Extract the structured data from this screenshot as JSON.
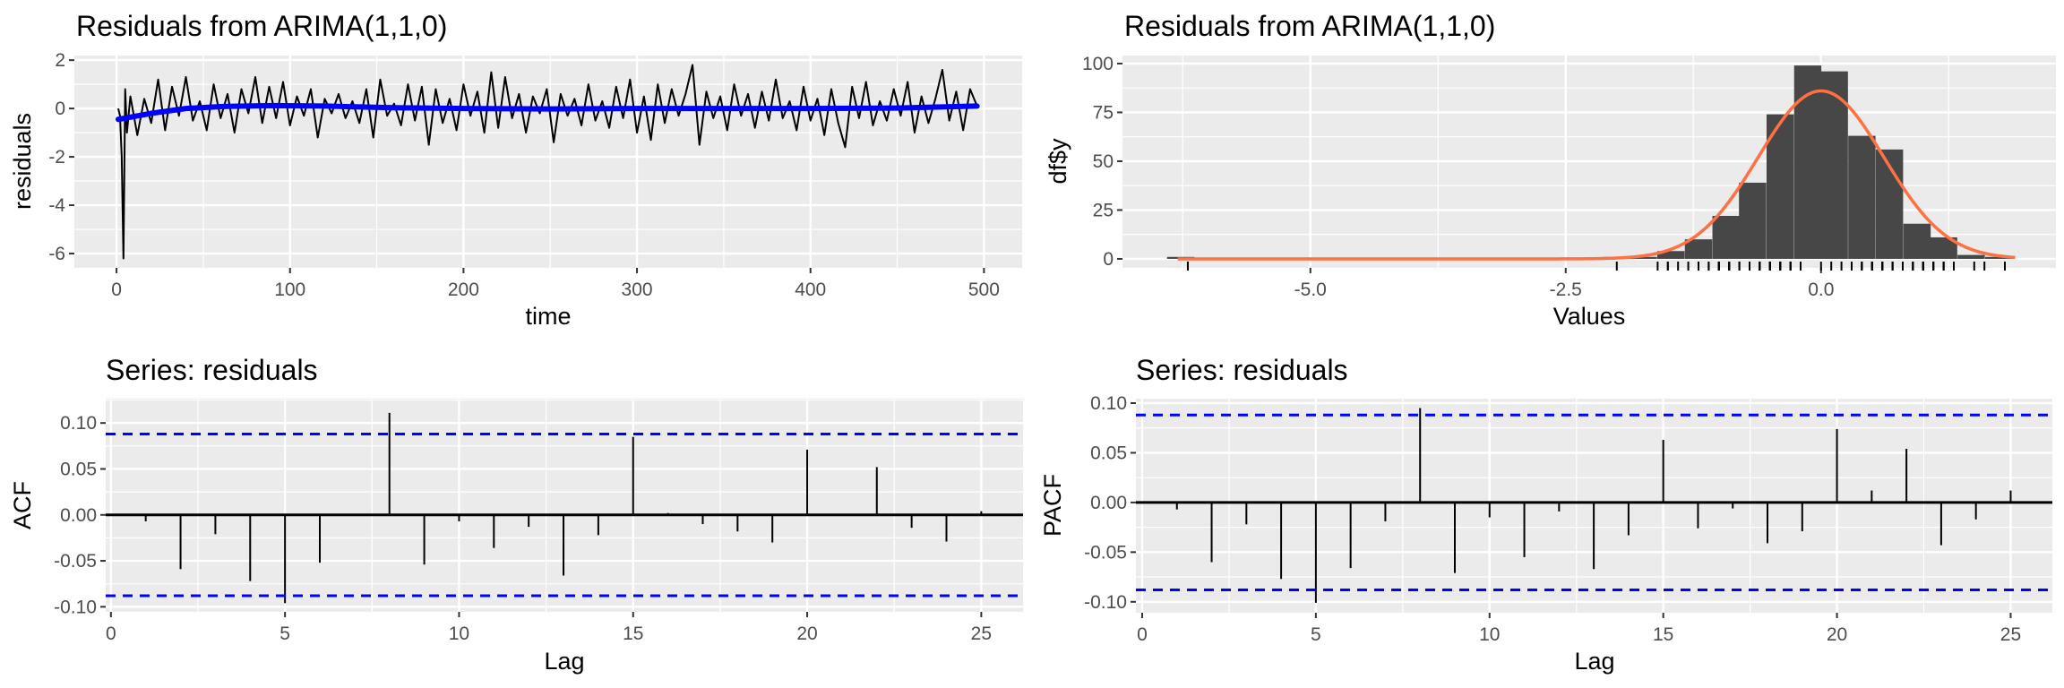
{
  "chart_data": [
    {
      "type": "line",
      "title": "Residuals from ARIMA(1,1,0)",
      "xlabel": "time",
      "ylabel": "residuals",
      "xlim": [
        -24.3,
        522
      ],
      "ylim": [
        -6.59,
        2.19
      ],
      "xticks": [
        0,
        100,
        200,
        300,
        400,
        500
      ],
      "xtick_labels": [
        "0",
        "100",
        "200",
        "300",
        "400",
        "500"
      ],
      "yticks": [
        -6,
        -4,
        -2,
        0,
        2
      ],
      "ytick_labels": [
        "-6",
        "-4",
        "-2",
        "0",
        "2"
      ],
      "grid": true,
      "series_color": "#000000",
      "trend_color": "#0000FF",
      "head_points": [
        [
          1,
          0.0
        ],
        [
          2,
          -0.3
        ],
        [
          3,
          -2.0
        ],
        [
          4,
          -6.2
        ],
        [
          5,
          0.8
        ],
        [
          6,
          -1.0
        ]
      ],
      "t_start": 8,
      "t_step": 4,
      "values": [
        0.5,
        -1.1,
        0.4,
        -0.6,
        1.2,
        -0.9,
        0.9,
        -0.3,
        1.3,
        -0.5,
        0.3,
        -0.9,
        1.0,
        -0.4,
        0.6,
        -1.0,
        0.8,
        -0.2,
        1.3,
        -0.6,
        0.9,
        -0.4,
        1.1,
        -0.7,
        0.5,
        -0.3,
        0.8,
        -1.2,
        0.4,
        -0.2,
        0.6,
        -0.4,
        0.3,
        -0.6,
        0.8,
        -1.2,
        1.2,
        -0.3,
        0.2,
        -0.7,
        1.0,
        -0.5,
        0.9,
        -1.5,
        0.8,
        -0.6,
        0.4,
        -0.9,
        1.0,
        -0.3,
        0.7,
        -1.0,
        1.5,
        -0.8,
        1.3,
        -0.4,
        0.6,
        -1.0,
        0.5,
        -0.2,
        0.8,
        -1.4,
        0.6,
        -0.3,
        0.4,
        -0.7,
        1.0,
        -0.5,
        0.3,
        -0.8,
        0.9,
        -0.4,
        1.2,
        -1.0,
        0.5,
        -1.3,
        1.0,
        -0.6,
        0.8,
        -0.3,
        0.6,
        1.8,
        -1.5,
        0.7,
        -0.4,
        0.5,
        -0.9,
        1.0,
        -0.3,
        0.6,
        -0.8,
        0.7,
        -0.5,
        1.2,
        -0.4,
        0.3,
        -0.9,
        0.9,
        -0.5,
        0.4,
        -1.1,
        0.8,
        -0.6,
        -1.6,
        0.9,
        -0.4,
        1.1,
        -0.7,
        0.3,
        -0.5,
        0.8,
        -0.3,
        1.1,
        -1.0,
        0.5,
        -0.6,
        0.4,
        1.6,
        -0.5,
        0.7,
        -0.9,
        0.8,
        0.1
      ],
      "trend": [
        [
          1,
          -0.45
        ],
        [
          20,
          -0.2
        ],
        [
          40,
          0.0
        ],
        [
          60,
          0.08
        ],
        [
          90,
          0.12
        ],
        [
          120,
          0.1
        ],
        [
          160,
          0.03
        ],
        [
          200,
          0.0
        ],
        [
          250,
          -0.02
        ],
        [
          300,
          0.0
        ],
        [
          350,
          0.0
        ],
        [
          400,
          0.0
        ],
        [
          450,
          0.02
        ],
        [
          496,
          0.1
        ]
      ]
    },
    {
      "type": "bar",
      "title": "Residuals from ARIMA(1,1,0)",
      "xlabel": "Values",
      "ylabel": "df$y",
      "xlim": [
        -6.84,
        2.3
      ],
      "ylim": [
        -4.6,
        104.1
      ],
      "xticks": [
        -5.0,
        -2.5,
        0.0
      ],
      "xtick_labels": [
        "-5.0",
        "-2.5",
        "0.0"
      ],
      "yticks": [
        0,
        25,
        50,
        75,
        100
      ],
      "ytick_labels": [
        "0",
        "25",
        "50",
        "75",
        "100"
      ],
      "grid": true,
      "bar_color": "#474747",
      "curve_color": "#FF7043",
      "bin_width": 0.267,
      "bin_centers": [
        -6.27,
        -2.0,
        -1.74,
        -1.47,
        -1.2,
        -0.93,
        -0.67,
        -0.4,
        -0.13,
        0.13,
        0.4,
        0.67,
        0.94,
        1.2,
        1.47,
        1.74
      ],
      "counts": [
        1,
        1,
        1,
        4,
        10,
        22,
        39,
        74,
        99,
        96,
        63,
        56,
        18,
        11,
        2,
        1
      ],
      "normal_fit": {
        "mean": 0.0,
        "sd": 0.614,
        "peak": 86,
        "from": -6.3,
        "to": 1.9
      }
    },
    {
      "type": "bar",
      "title": "Series: residuals",
      "xlabel": "Lag",
      "ylabel": "ACF",
      "xlim": [
        -0.15,
        26.2
      ],
      "ylim": [
        -0.1055,
        0.1265
      ],
      "xticks": [
        0,
        5,
        10,
        15,
        20,
        25
      ],
      "xtick_labels": [
        "0",
        "5",
        "10",
        "15",
        "20",
        "25"
      ],
      "yticks": [
        -0.1,
        -0.05,
        0.0,
        0.05,
        0.1
      ],
      "ytick_labels": [
        "-0.10",
        "-0.05",
        "0.00",
        "0.05",
        "0.10"
      ],
      "grid": true,
      "ci": 0.088,
      "ci_color": "#0000FF",
      "lags": [
        1,
        2,
        3,
        4,
        5,
        6,
        7,
        8,
        9,
        10,
        11,
        12,
        13,
        14,
        15,
        16,
        17,
        18,
        19,
        20,
        21,
        22,
        23,
        24,
        25
      ],
      "values": [
        -0.007,
        -0.059,
        -0.021,
        -0.072,
        -0.096,
        -0.052,
        0.001,
        0.111,
        -0.054,
        -0.007,
        -0.036,
        -0.013,
        -0.066,
        -0.022,
        0.085,
        0.002,
        -0.01,
        -0.018,
        -0.03,
        0.071,
        0.0,
        0.052,
        -0.014,
        -0.029,
        0.004
      ]
    },
    {
      "type": "bar",
      "title": "Series: residuals",
      "xlabel": "Lag",
      "ylabel": "PACF",
      "xlim": [
        -0.18,
        26.2
      ],
      "ylim": [
        -0.111,
        0.1045
      ],
      "xticks": [
        0,
        5,
        10,
        15,
        20,
        25
      ],
      "xtick_labels": [
        "0",
        "5",
        "10",
        "15",
        "20",
        "25"
      ],
      "yticks": [
        -0.1,
        -0.05,
        0.0,
        0.05,
        0.1
      ],
      "ytick_labels": [
        "-0.10",
        "-0.05",
        "0.00",
        "0.05",
        "0.10"
      ],
      "grid": true,
      "ci": 0.088,
      "ci_color": "#0000FF",
      "lags": [
        1,
        2,
        3,
        4,
        5,
        6,
        7,
        8,
        9,
        10,
        11,
        12,
        13,
        14,
        15,
        16,
        17,
        18,
        19,
        20,
        21,
        22,
        23,
        24,
        25
      ],
      "values": [
        -0.007,
        -0.06,
        -0.022,
        -0.077,
        -0.101,
        -0.066,
        -0.019,
        0.095,
        -0.071,
        -0.015,
        -0.055,
        -0.009,
        -0.067,
        -0.033,
        0.063,
        -0.026,
        -0.006,
        -0.041,
        -0.029,
        0.074,
        0.012,
        0.054,
        -0.043,
        -0.017,
        0.012
      ]
    }
  ]
}
